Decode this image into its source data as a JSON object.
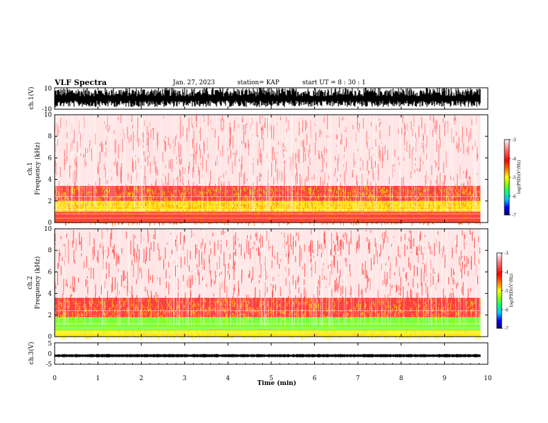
{
  "header": {
    "title": "VLF Spectra",
    "date": "Jan. 27, 2023",
    "station": "station= KAP",
    "start": "start UT =  8 : 30 : 1"
  },
  "colors": {
    "spectrogram_bg": "#ffffff",
    "waveform": "#000000",
    "colormap": [
      "#000080",
      "#0000ff",
      "#00c0ff",
      "#00ff80",
      "#80ff00",
      "#ffff00",
      "#ff8000",
      "#ff0000",
      "#ff8080",
      "#ffffff"
    ]
  },
  "chart_data": [
    {
      "type": "line",
      "name": "ch1-waveform",
      "ylabel": "ch.1(V)",
      "ylim": [
        -10,
        10
      ],
      "yticks": [
        "10",
        "-10"
      ],
      "xlim": [
        0,
        10
      ],
      "note": "dense VLF waveform, amplitude mostly between -5 and +10 V"
    },
    {
      "type": "heatmap",
      "name": "ch1-spectrogram",
      "ylabel": "ch.1 Frequency (kHz)",
      "ylim": [
        0,
        10
      ],
      "yticks": [
        "0",
        "2",
        "4",
        "6",
        "8",
        "10"
      ],
      "xlim": [
        0,
        10
      ],
      "colorbar": {
        "label": "log(PSD)(V²/Hz)",
        "range": [
          -7,
          -3
        ],
        "ticks": [
          "-3",
          "-4",
          "-5",
          "-6",
          "-7"
        ]
      },
      "bands": [
        {
          "kHz": [
            0,
            1.0
          ],
          "level": "red-yellow"
        },
        {
          "kHz": [
            1.0,
            2.0
          ],
          "level": "yellow"
        },
        {
          "kHz": [
            2.0,
            3.4
          ],
          "level": "red-yellow"
        },
        {
          "kHz": [
            3.4,
            10
          ],
          "level": "light red"
        }
      ]
    },
    {
      "type": "heatmap",
      "name": "ch2-spectrogram",
      "ylabel": "ch.2 Frequency (kHz)",
      "ylim": [
        0,
        10
      ],
      "yticks": [
        "0",
        "2",
        "4",
        "6",
        "8",
        "10"
      ],
      "xlim": [
        0,
        10
      ],
      "colorbar": {
        "label": "log(PSD)(V²/Hz)",
        "range": [
          -7,
          -3
        ],
        "ticks": [
          "-3",
          "-4",
          "-5",
          "-6",
          "-7"
        ]
      },
      "bands": [
        {
          "kHz": [
            0,
            0.6
          ],
          "level": "yellow"
        },
        {
          "kHz": [
            0.6,
            1.8
          ],
          "level": "green"
        },
        {
          "kHz": [
            1.8,
            3.6
          ],
          "level": "red-yellow"
        },
        {
          "kHz": [
            3.6,
            10
          ],
          "level": "light red"
        }
      ]
    },
    {
      "type": "line",
      "name": "ch3-waveform",
      "ylabel": "ch.3(V)",
      "ylim": [
        -5,
        5
      ],
      "yticks": [
        "5",
        "0",
        "-5"
      ],
      "xlim": [
        0,
        10
      ],
      "note": "near-constant band around -1 V"
    }
  ],
  "xaxis": {
    "label": "Time (min)",
    "ticks": [
      "0",
      "1",
      "2",
      "3",
      "4",
      "5",
      "6",
      "7",
      "8",
      "9",
      "10"
    ]
  }
}
